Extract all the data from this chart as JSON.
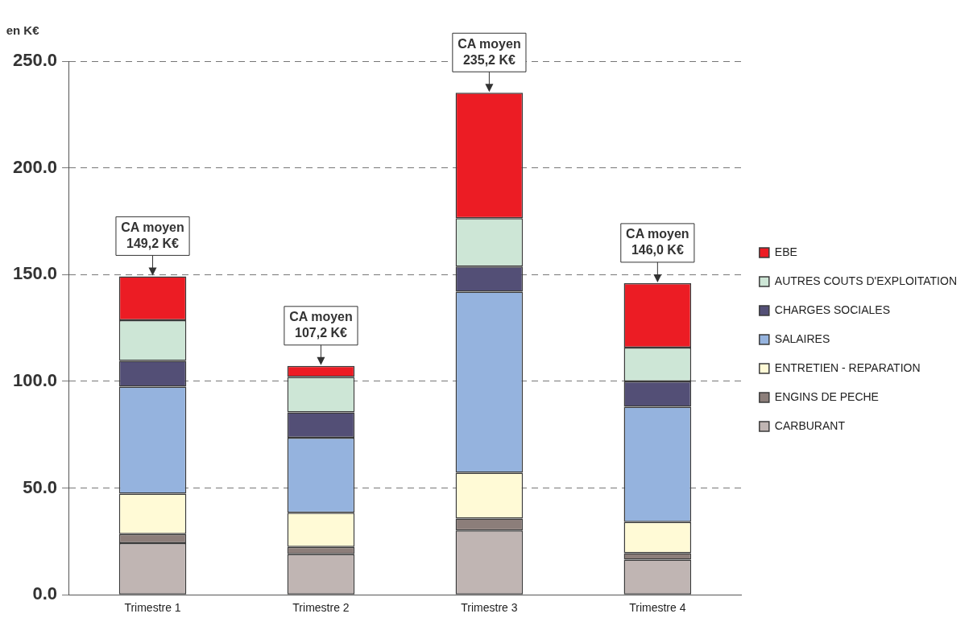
{
  "chart_data": {
    "type": "bar",
    "stacked": true,
    "ylabel": "en K€",
    "categories": [
      "Trimestre 1",
      "Trimestre 2",
      "Trimestre 3",
      "Trimestre 4"
    ],
    "series": [
      {
        "name": "CARBURANT",
        "color": "#c0b5b3",
        "values": [
          24.2,
          19.0,
          30.1,
          16.5
        ]
      },
      {
        "name": "ENGINS DE PECHE",
        "color": "#8c7e7a",
        "values": [
          4.2,
          3.4,
          5.6,
          3.0
        ]
      },
      {
        "name": "ENTRETIEN - REPARATION",
        "color": "#fffad6",
        "values": [
          19.0,
          16.0,
          21.5,
          14.6
        ]
      },
      {
        "name": "SALAIRES",
        "color": "#95b3de",
        "values": [
          50.1,
          35.2,
          84.8,
          54.0
        ]
      },
      {
        "name": "CHARGES SOCIALES",
        "color": "#534f76",
        "values": [
          12.1,
          11.9,
          11.8,
          11.9
        ]
      },
      {
        "name": "AUTRES COUTS D'EXPLOITATION",
        "color": "#cde6d6",
        "values": [
          19.0,
          16.5,
          22.6,
          15.8
        ]
      },
      {
        "name": "EBE",
        "color": "#ec1c24",
        "values": [
          20.6,
          5.2,
          58.8,
          30.2
        ]
      }
    ],
    "ylim": [
      0,
      250
    ],
    "yticks": [
      {
        "value": 0,
        "label": "0.0"
      },
      {
        "value": 50,
        "label": "50.0"
      },
      {
        "value": 100,
        "label": "100.0"
      },
      {
        "value": 150,
        "label": "150.0"
      },
      {
        "value": 200,
        "label": "200.0"
      },
      {
        "value": 250,
        "label": "250.0"
      }
    ],
    "grid": "y",
    "legend": "right",
    "totals": [
      "CA moyen\n149,2 K€",
      "CA moyen\n107,2 K€",
      "CA moyen\n235,2 K€",
      "CA moyen\n146,0 K€"
    ]
  }
}
